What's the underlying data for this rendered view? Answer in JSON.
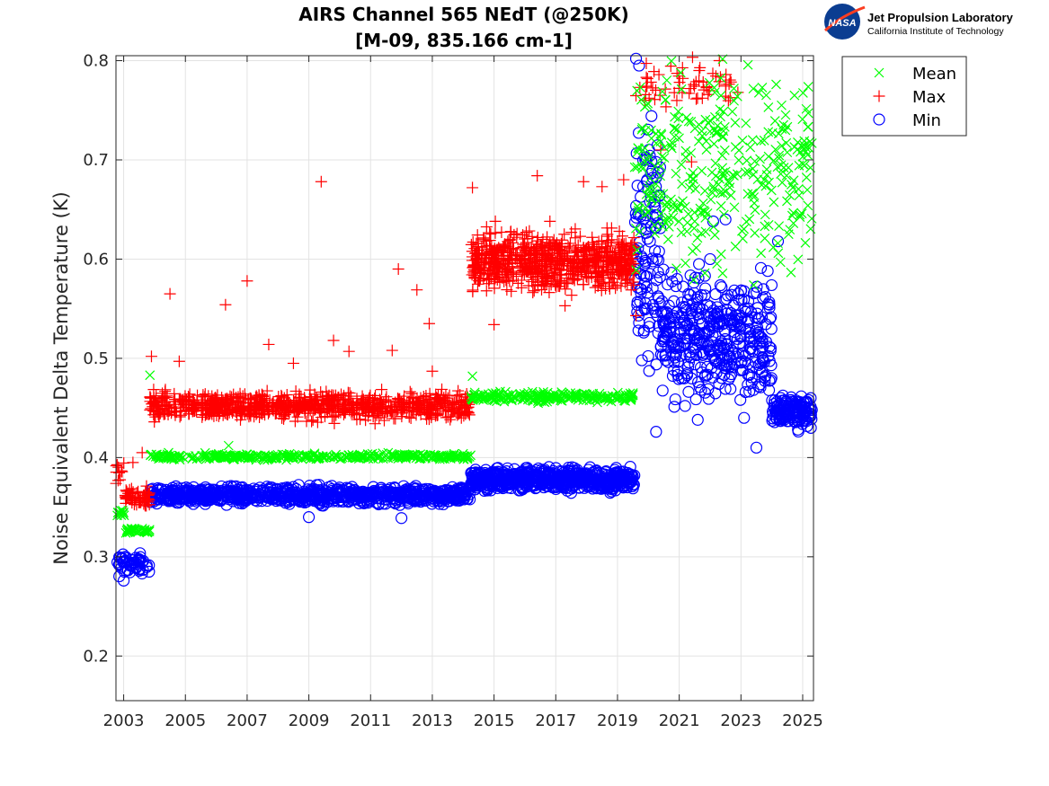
{
  "logo": {
    "org": "Jet Propulsion Laboratory",
    "sub": "California Institute of Technology",
    "badge": "NASA"
  },
  "chart_data": {
    "type": "scatter",
    "title": "AIRS Channel 565 NEdT (@250K)",
    "subtitle": "[M-09, 835.166 cm-1]",
    "xlabel": "",
    "ylabel": "Noise Equivalent Delta Temperature (K)",
    "xlim": [
      2002.75,
      2025.35
    ],
    "ylim": [
      0.155,
      0.805
    ],
    "x_ticks": [
      2003,
      2005,
      2007,
      2009,
      2011,
      2013,
      2015,
      2017,
      2019,
      2021,
      2023,
      2025
    ],
    "x_tick_labels": [
      "2003",
      "2005",
      "2007",
      "2009",
      "2011",
      "2013",
      "2015",
      "2017",
      "2019",
      "2021",
      "2023",
      "2025"
    ],
    "y_ticks": [
      0.2,
      0.3,
      0.4,
      0.5,
      0.6,
      0.7,
      0.8
    ],
    "y_tick_labels": [
      "0.2",
      "0.3",
      "0.4",
      "0.5",
      "0.6",
      "0.7",
      "0.8"
    ],
    "grid": true,
    "legend_position": "top-right outside",
    "series": [
      {
        "name": "Mean",
        "marker": "x",
        "color": "#00ff00",
        "segments": [
          {
            "x0": 2002.75,
            "x1": 2003.05,
            "level": 0.345,
            "spread": 0.003,
            "count": 12
          },
          {
            "x0": 2003.05,
            "x1": 2003.85,
            "level": 0.326,
            "spread": 0.002,
            "count": 40
          },
          {
            "x0": 2003.85,
            "x1": 2014.25,
            "level": 0.401,
            "spread": 0.0025,
            "count": 360
          },
          {
            "x0": 2014.25,
            "x1": 2019.55,
            "level": 0.461,
            "spread": 0.004,
            "count": 220
          },
          {
            "x0": 2019.55,
            "x1": 2025.3,
            "level": 0.69,
            "spread": 0.085,
            "count": 340
          }
        ],
        "outliers": [
          {
            "x": 2003.85,
            "y": 0.483
          },
          {
            "x": 2006.4,
            "y": 0.412
          },
          {
            "x": 2014.3,
            "y": 0.482
          }
        ]
      },
      {
        "name": "Max",
        "marker": "+",
        "color": "#ff0000",
        "segments": [
          {
            "x0": 2002.75,
            "x1": 2003.05,
            "level": 0.385,
            "spread": 0.01,
            "count": 12
          },
          {
            "x0": 2003.05,
            "x1": 2003.85,
            "level": 0.36,
            "spread": 0.008,
            "count": 60
          },
          {
            "x0": 2003.85,
            "x1": 2014.25,
            "level": 0.452,
            "spread": 0.011,
            "count": 900
          },
          {
            "x0": 2014.25,
            "x1": 2019.55,
            "level": 0.598,
            "spread": 0.024,
            "count": 800
          },
          {
            "x0": 2019.55,
            "x1": 2022.8,
            "level": 0.775,
            "spread": 0.02,
            "count": 60
          }
        ],
        "outliers": [
          {
            "x": 2003.3,
            "y": 0.395
          },
          {
            "x": 2003.6,
            "y": 0.405
          },
          {
            "x": 2003.9,
            "y": 0.502
          },
          {
            "x": 2004.5,
            "y": 0.565
          },
          {
            "x": 2004.8,
            "y": 0.497
          },
          {
            "x": 2006.3,
            "y": 0.554
          },
          {
            "x": 2007.0,
            "y": 0.578
          },
          {
            "x": 2007.7,
            "y": 0.514
          },
          {
            "x": 2008.5,
            "y": 0.495
          },
          {
            "x": 2009.4,
            "y": 0.678
          },
          {
            "x": 2009.8,
            "y": 0.518
          },
          {
            "x": 2010.3,
            "y": 0.507
          },
          {
            "x": 2011.7,
            "y": 0.508
          },
          {
            "x": 2011.9,
            "y": 0.59
          },
          {
            "x": 2012.5,
            "y": 0.569
          },
          {
            "x": 2012.9,
            "y": 0.535
          },
          {
            "x": 2013.0,
            "y": 0.487
          },
          {
            "x": 2014.3,
            "y": 0.672
          },
          {
            "x": 2015.0,
            "y": 0.534
          },
          {
            "x": 2016.4,
            "y": 0.684
          },
          {
            "x": 2017.3,
            "y": 0.553
          },
          {
            "x": 2017.9,
            "y": 0.678
          },
          {
            "x": 2018.5,
            "y": 0.673
          },
          {
            "x": 2019.2,
            "y": 0.68
          },
          {
            "x": 2019.6,
            "y": 0.543
          },
          {
            "x": 2020.4,
            "y": 0.71
          },
          {
            "x": 2021.4,
            "y": 0.698
          },
          {
            "x": 2022.3,
            "y": 0.8
          },
          {
            "x": 2022.9,
            "y": 0.768
          }
        ]
      },
      {
        "name": "Min",
        "marker": "o",
        "color": "#0000ff",
        "segments": [
          {
            "x0": 2002.75,
            "x1": 2003.85,
            "level": 0.292,
            "spread": 0.009,
            "count": 60
          },
          {
            "x0": 2003.85,
            "x1": 2014.25,
            "level": 0.362,
            "spread": 0.007,
            "count": 900
          },
          {
            "x0": 2014.25,
            "x1": 2019.55,
            "level": 0.378,
            "spread": 0.009,
            "count": 700
          },
          {
            "x0": 2019.55,
            "x1": 2020.4,
            "level": 0.62,
            "spread": 0.1,
            "count": 120
          },
          {
            "x0": 2020.4,
            "x1": 2024.0,
            "level": 0.52,
            "spread": 0.05,
            "count": 420
          },
          {
            "x0": 2024.0,
            "x1": 2025.3,
            "level": 0.447,
            "spread": 0.014,
            "count": 150
          }
        ],
        "outliers": [
          {
            "x": 2003.0,
            "y": 0.276
          },
          {
            "x": 2009.0,
            "y": 0.34
          },
          {
            "x": 2012.0,
            "y": 0.339
          },
          {
            "x": 2019.6,
            "y": 0.802
          },
          {
            "x": 2019.7,
            "y": 0.795
          },
          {
            "x": 2020.25,
            "y": 0.426
          },
          {
            "x": 2021.6,
            "y": 0.438
          },
          {
            "x": 2022.5,
            "y": 0.64
          },
          {
            "x": 2022.0,
            "y": 0.6
          },
          {
            "x": 2023.5,
            "y": 0.41
          },
          {
            "x": 2024.2,
            "y": 0.618
          },
          {
            "x": 2022.1,
            "y": 0.638
          },
          {
            "x": 2023.1,
            "y": 0.44
          }
        ]
      }
    ]
  }
}
